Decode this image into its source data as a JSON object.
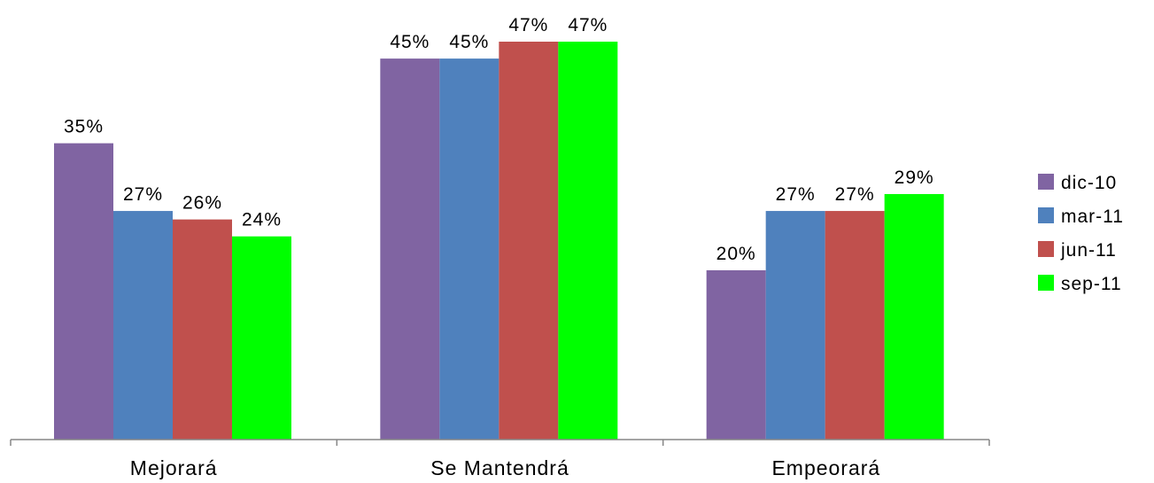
{
  "chart_data": {
    "type": "bar",
    "categories": [
      "Mejorará",
      "Se Mantendrá",
      "Empeorará"
    ],
    "series": [
      {
        "name": "dic-10",
        "color": "#8064A2",
        "values": [
          35,
          45,
          20
        ],
        "labels": [
          "35%",
          "45%",
          "20%"
        ]
      },
      {
        "name": "mar-11",
        "color": "#4F81BD",
        "values": [
          27,
          45,
          27
        ],
        "labels": [
          "27%",
          "45%",
          "27%"
        ]
      },
      {
        "name": "jun-11",
        "color": "#C0504D",
        "values": [
          26,
          47,
          27
        ],
        "labels": [
          "26%",
          "47%",
          "27%"
        ]
      },
      {
        "name": "sep-11",
        "color": "#00FF00",
        "values": [
          24,
          47,
          29
        ],
        "labels": [
          "24%",
          "47%",
          "29%"
        ]
      }
    ],
    "ylim": [
      0,
      47
    ],
    "grid": false,
    "legend_position": "right"
  }
}
